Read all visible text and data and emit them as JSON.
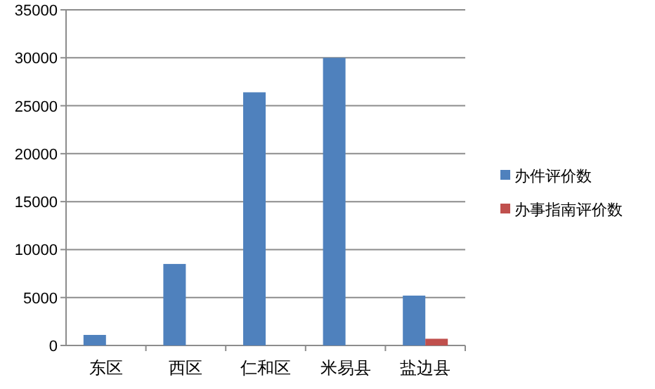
{
  "chart_data": {
    "type": "bar",
    "categories": [
      "东区",
      "西区",
      "仁和区",
      "米易县",
      "盐边县"
    ],
    "series": [
      {
        "name": "办件评价数",
        "color": "#4f81bd",
        "values": [
          1100,
          8500,
          26400,
          30000,
          5200
        ]
      },
      {
        "name": "办事指南评价数",
        "color": "#c0504d",
        "values": [
          0,
          0,
          0,
          0,
          700
        ]
      }
    ],
    "ylim": [
      0,
      35000
    ],
    "yticks": [
      0,
      5000,
      10000,
      15000,
      20000,
      25000,
      30000,
      35000
    ],
    "grid": "y",
    "legend": "right"
  }
}
